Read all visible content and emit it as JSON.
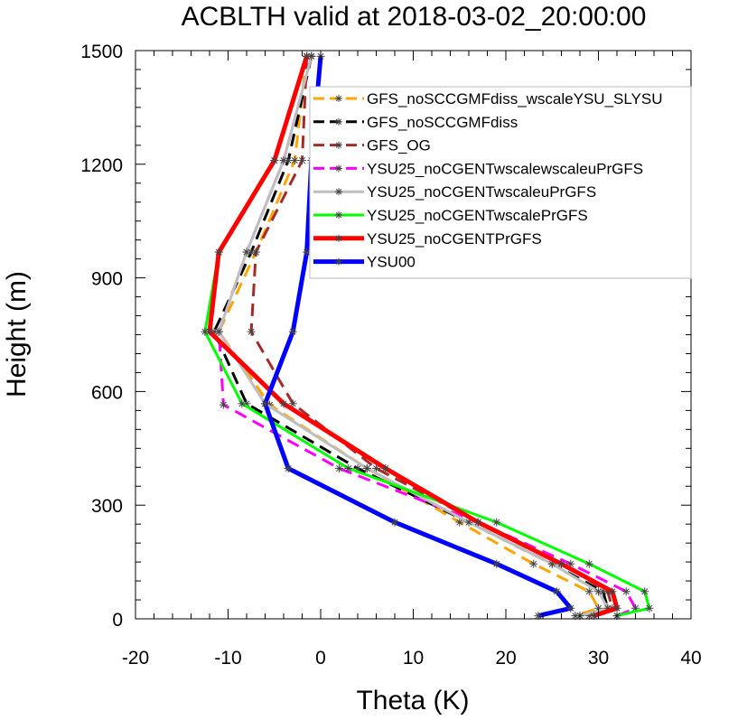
{
  "chart_data": {
    "type": "line",
    "title": "ACBLTH valid at 2018-03-02_20:00:00",
    "xlabel": "Theta (K)",
    "ylabel": "Height (m)",
    "xlim": [
      -20,
      40
    ],
    "ylim": [
      0,
      1500
    ],
    "xticks": [
      -20,
      -10,
      0,
      10,
      20,
      30,
      40
    ],
    "yticks": [
      0,
      300,
      600,
      900,
      1200,
      1500
    ],
    "x_minor_step": 2,
    "y_minor_step": 50,
    "grid": false,
    "legend_placement": "top-right",
    "series": [
      {
        "name": "GFS_noSCCGMFdiss_wscaleYSU_SLYSU",
        "color": "#ffa500",
        "dash": "long-dash",
        "width": 3,
        "points": [
          [
            -1.5,
            1485
          ],
          [
            -2.8,
            1210
          ],
          [
            -7,
            968
          ],
          [
            -11,
            758
          ],
          [
            -5.5,
            565
          ],
          [
            5,
            397
          ],
          [
            15,
            255
          ],
          [
            23,
            145
          ],
          [
            29,
            72
          ],
          [
            30,
            28
          ],
          [
            27.5,
            8
          ]
        ]
      },
      {
        "name": "GFS_noSCCGMFdiss",
        "color": "#000000",
        "dash": "long-dash",
        "width": 3,
        "points": [
          [
            -1,
            1485
          ],
          [
            -3.5,
            1210
          ],
          [
            -7.5,
            968
          ],
          [
            -11.5,
            758
          ],
          [
            -8,
            568
          ],
          [
            4,
            397
          ],
          [
            16,
            255
          ],
          [
            25,
            145
          ],
          [
            30.5,
            72
          ],
          [
            31,
            28
          ],
          [
            28,
            8
          ]
        ]
      },
      {
        "name": "GFS_OG",
        "color": "#a52a2a",
        "dash": "long-dash",
        "width": 3,
        "points": [
          [
            -1.5,
            1485
          ],
          [
            -2,
            1210
          ],
          [
            -7,
            968
          ],
          [
            -7.5,
            758
          ],
          [
            -3,
            568
          ],
          [
            6,
            397
          ],
          [
            17,
            255
          ],
          [
            26,
            145
          ],
          [
            31,
            72
          ],
          [
            31.5,
            28
          ],
          [
            29,
            8
          ]
        ]
      },
      {
        "name": "YSU25_noCGENTwscalewscaleuPrGFS",
        "color": "#ff00ff",
        "dash": "long-dash",
        "width": 3,
        "points": [
          [
            -1,
            1485
          ],
          [
            -4,
            1210
          ],
          [
            -8,
            968
          ],
          [
            -11,
            758
          ],
          [
            -10.5,
            565
          ],
          [
            2,
            397
          ],
          [
            17,
            255
          ],
          [
            27,
            145
          ],
          [
            33,
            72
          ],
          [
            34,
            28
          ],
          [
            32,
            8
          ]
        ]
      },
      {
        "name": "YSU25_noCGENTwscaleuPrGFS",
        "color": "#bebebe",
        "dash": "solid",
        "width": 3,
        "points": [
          [
            -1,
            1485
          ],
          [
            -4,
            1210
          ],
          [
            -8,
            968
          ],
          [
            -11,
            758
          ],
          [
            -6,
            568
          ],
          [
            5,
            397
          ],
          [
            16,
            255
          ],
          [
            25,
            145
          ],
          [
            30,
            72
          ],
          [
            31,
            28
          ],
          [
            28,
            8
          ]
        ]
      },
      {
        "name": "YSU25_noCGENTwscalePrGFS",
        "color": "#00ff00",
        "dash": "solid",
        "width": 3,
        "points": [
          [
            -1.5,
            1485
          ],
          [
            -5,
            1210
          ],
          [
            -11,
            968
          ],
          [
            -12.5,
            758
          ],
          [
            -8.5,
            568
          ],
          [
            3,
            397
          ],
          [
            19,
            255
          ],
          [
            29,
            145
          ],
          [
            35,
            72
          ],
          [
            35.5,
            28
          ],
          [
            32,
            8
          ]
        ]
      },
      {
        "name": "YSU25_noCGENTPrGFS",
        "color": "#ff0000",
        "dash": "solid",
        "width": 5,
        "points": [
          [
            -1.5,
            1485
          ],
          [
            -5,
            1210
          ],
          [
            -11,
            968
          ],
          [
            -12,
            758
          ],
          [
            -4,
            568
          ],
          [
            7,
            397
          ],
          [
            17,
            255
          ],
          [
            26,
            145
          ],
          [
            31.5,
            72
          ],
          [
            32,
            28
          ],
          [
            29.5,
            8
          ]
        ]
      },
      {
        "name": "YSU00",
        "color": "#0000ff",
        "dash": "solid",
        "width": 5,
        "points": [
          [
            0,
            1485
          ],
          [
            -1,
            1210
          ],
          [
            -1.5,
            968
          ],
          [
            -3,
            758
          ],
          [
            -6,
            568
          ],
          [
            -3.5,
            397
          ],
          [
            8,
            255
          ],
          [
            19,
            145
          ],
          [
            25.5,
            72
          ],
          [
            27,
            28
          ],
          [
            23.5,
            8
          ]
        ]
      }
    ]
  }
}
